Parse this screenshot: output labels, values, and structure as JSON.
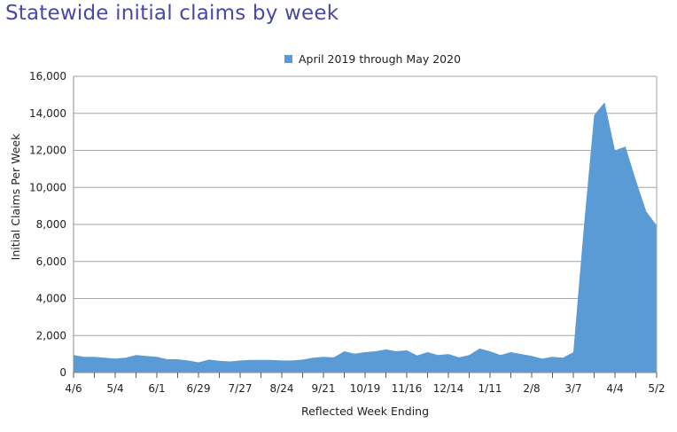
{
  "chart_data": {
    "type": "area",
    "title": "Statewide initial claims by week",
    "xlabel": "Reflected Week Ending",
    "ylabel": "Initial Claims Per Week",
    "ylim": [
      0,
      16000
    ],
    "yticks": [
      0,
      2000,
      4000,
      6000,
      8000,
      10000,
      12000,
      14000,
      16000
    ],
    "ytick_labels": [
      "0",
      "2,000",
      "4,000",
      "6,000",
      "8,000",
      "10,000",
      "12,000",
      "14,000",
      "16,000"
    ],
    "xtick_labels": [
      "4/6",
      "5/4",
      "6/1",
      "6/29",
      "7/27",
      "8/24",
      "9/21",
      "10/19",
      "11/16",
      "12/14",
      "1/11",
      "2/8",
      "3/7",
      "4/4",
      "5/2"
    ],
    "xtick_label_every_weeks": 4,
    "minor_tick_every_weeks": 2,
    "grid": true,
    "legend": {
      "position": "top-center",
      "entries": [
        "April 2019 through May 2020"
      ]
    },
    "series": [
      {
        "name": "April 2019 through May 2020",
        "color": "#5b9bd5",
        "values": [
          950,
          850,
          850,
          800,
          750,
          800,
          950,
          900,
          850,
          720,
          720,
          650,
          550,
          700,
          630,
          600,
          650,
          680,
          680,
          680,
          650,
          650,
          700,
          800,
          850,
          820,
          1150,
          1020,
          1100,
          1150,
          1250,
          1150,
          1200,
          920,
          1100,
          950,
          1000,
          820,
          950,
          1300,
          1150,
          950,
          1100,
          1000,
          900,
          750,
          850,
          800,
          1100,
          7800,
          13900,
          14600,
          12000,
          12200,
          10400,
          8700,
          7950
        ]
      }
    ]
  }
}
